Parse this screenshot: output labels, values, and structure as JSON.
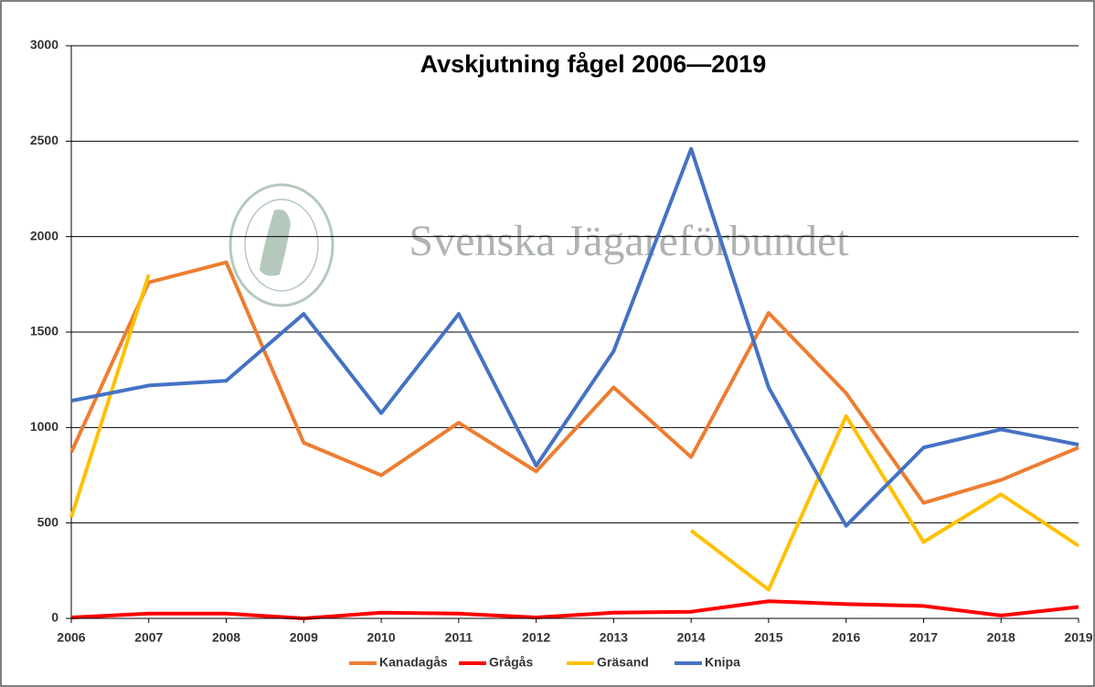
{
  "chart_data": {
    "type": "line",
    "title": "Avskjutning fågel 2006—2019",
    "watermark": "Svenska Jägareförbundet",
    "x": [
      2006,
      2007,
      2008,
      2009,
      2010,
      2011,
      2012,
      2013,
      2014,
      2015,
      2016,
      2017,
      2018,
      2019
    ],
    "series": [
      {
        "name": "Kanadagås",
        "color": "#ed7d31",
        "values": [
          870,
          1760,
          1865,
          920,
          750,
          1025,
          770,
          1210,
          845,
          1600,
          1180,
          605,
          725,
          895
        ]
      },
      {
        "name": "Grågås",
        "color": "#ff0000",
        "values": [
          5,
          25,
          25,
          0,
          30,
          25,
          5,
          30,
          35,
          90,
          75,
          65,
          15,
          60
        ]
      },
      {
        "name": "Gräsand",
        "color": "#ffc000",
        "values": [
          530,
          1800,
          null,
          null,
          null,
          null,
          null,
          null,
          460,
          150,
          1060,
          400,
          650,
          380
        ]
      },
      {
        "name": "Knipa",
        "color": "#4472c4",
        "values": [
          1140,
          1220,
          1245,
          1595,
          1075,
          1595,
          800,
          1400,
          2460,
          1210,
          485,
          895,
          990,
          910
        ]
      }
    ],
    "xlim": [
      2006,
      2019
    ],
    "xticks": [
      2006,
      2007,
      2008,
      2009,
      2010,
      2011,
      2012,
      2013,
      2014,
      2015,
      2016,
      2017,
      2018,
      2019
    ],
    "ylim": [
      0,
      3000
    ],
    "yticks": [
      0,
      500,
      1000,
      1500,
      2000,
      2500,
      3000
    ],
    "grid": true,
    "legend": "bottom"
  }
}
